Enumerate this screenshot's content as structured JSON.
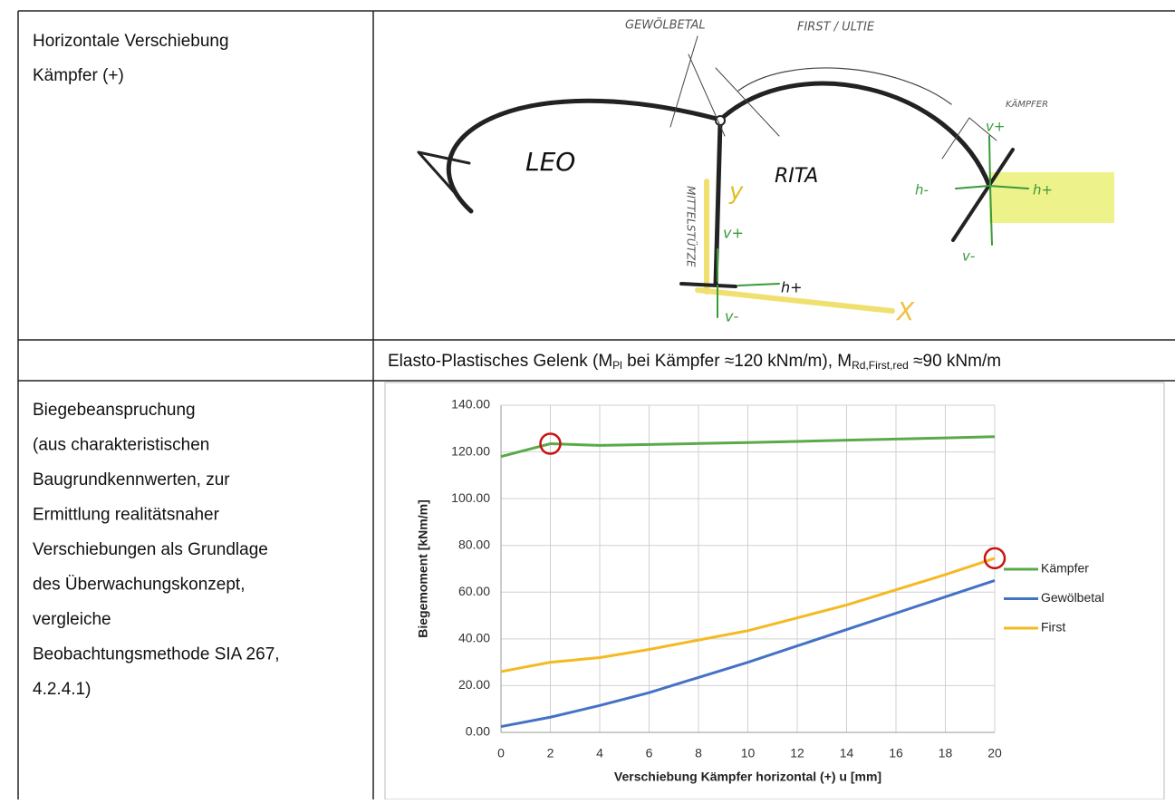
{
  "table": {
    "rows": [
      {
        "left": [
          "Horizontale Verschiebung",
          "Kämpfer (+)"
        ]
      },
      {
        "caption": [
          "Elasto-Plastisches Gelenk (M",
          "Pl",
          " bei Kämpfer ≈120 kNm/m), M",
          "Rd,First,red",
          " ≈90 kNm/m"
        ]
      },
      {
        "left": [
          "Biegebeanspruchung",
          "(aus charakteristischen",
          "Baugrundkennwerten, zur",
          "Ermittlung realitätsnaher",
          "Verschiebungen als Grundlage",
          "des Überwachungskonzept,",
          "vergleiche",
          "Beobachtungsmethode SIA 267,",
          "4.2.4.1)"
        ]
      }
    ]
  },
  "sketch": {
    "labels": [
      "GEWÖLBETAL",
      "FIRST / ULTIE",
      "KÄMPFER",
      "LEO",
      "RITA",
      "MITTELSTÜTZE",
      "y",
      "v+",
      "h+",
      "v-",
      "X",
      "v+",
      "h-",
      "h+",
      "v-"
    ]
  },
  "chart_data": {
    "type": "line",
    "x_label": "Verschiebung Kämpfer horizontal (+) u [mm]",
    "y_label": "Biegemoment [kNm/m]",
    "x": [
      0,
      2,
      4,
      6,
      8,
      10,
      12,
      14,
      16,
      18,
      20
    ],
    "xlim": [
      0,
      20
    ],
    "xticks": [
      0,
      2,
      4,
      6,
      8,
      10,
      12,
      14,
      16,
      18,
      20
    ],
    "ylim": [
      0,
      140
    ],
    "yticks": [
      {
        "value": 0,
        "label": "0.00"
      },
      {
        "value": 20,
        "label": "20.00"
      },
      {
        "value": 40,
        "label": "40.00"
      },
      {
        "value": 60,
        "label": "60.00"
      },
      {
        "value": 80,
        "label": "80.00"
      },
      {
        "value": 100,
        "label": "100.00"
      },
      {
        "value": 120,
        "label": "120.00"
      },
      {
        "value": 140,
        "label": "140.00"
      }
    ],
    "grid": true,
    "legend": "right",
    "series": [
      {
        "name": "Kämpfer",
        "color": "#5aaa4a",
        "values": [
          118,
          123.5,
          122.8,
          123.2,
          123.6,
          124,
          124.5,
          125,
          125.5,
          126,
          126.5
        ]
      },
      {
        "name": "Gewölbetal",
        "color": "#4472c4",
        "values": [
          2.5,
          6.5,
          11.5,
          17,
          23.5,
          30,
          37,
          44,
          51,
          58,
          65
        ]
      },
      {
        "name": "First",
        "color": "#f5b921",
        "values": [
          26,
          30,
          32,
          35.5,
          39.5,
          43.5,
          49,
          54.5,
          61,
          67.5,
          74.5
        ]
      }
    ],
    "highlights": [
      {
        "series": 0,
        "point": 1,
        "color": "#cc1111"
      },
      {
        "series": 2,
        "point": 10,
        "color": "#cc1111"
      }
    ]
  }
}
